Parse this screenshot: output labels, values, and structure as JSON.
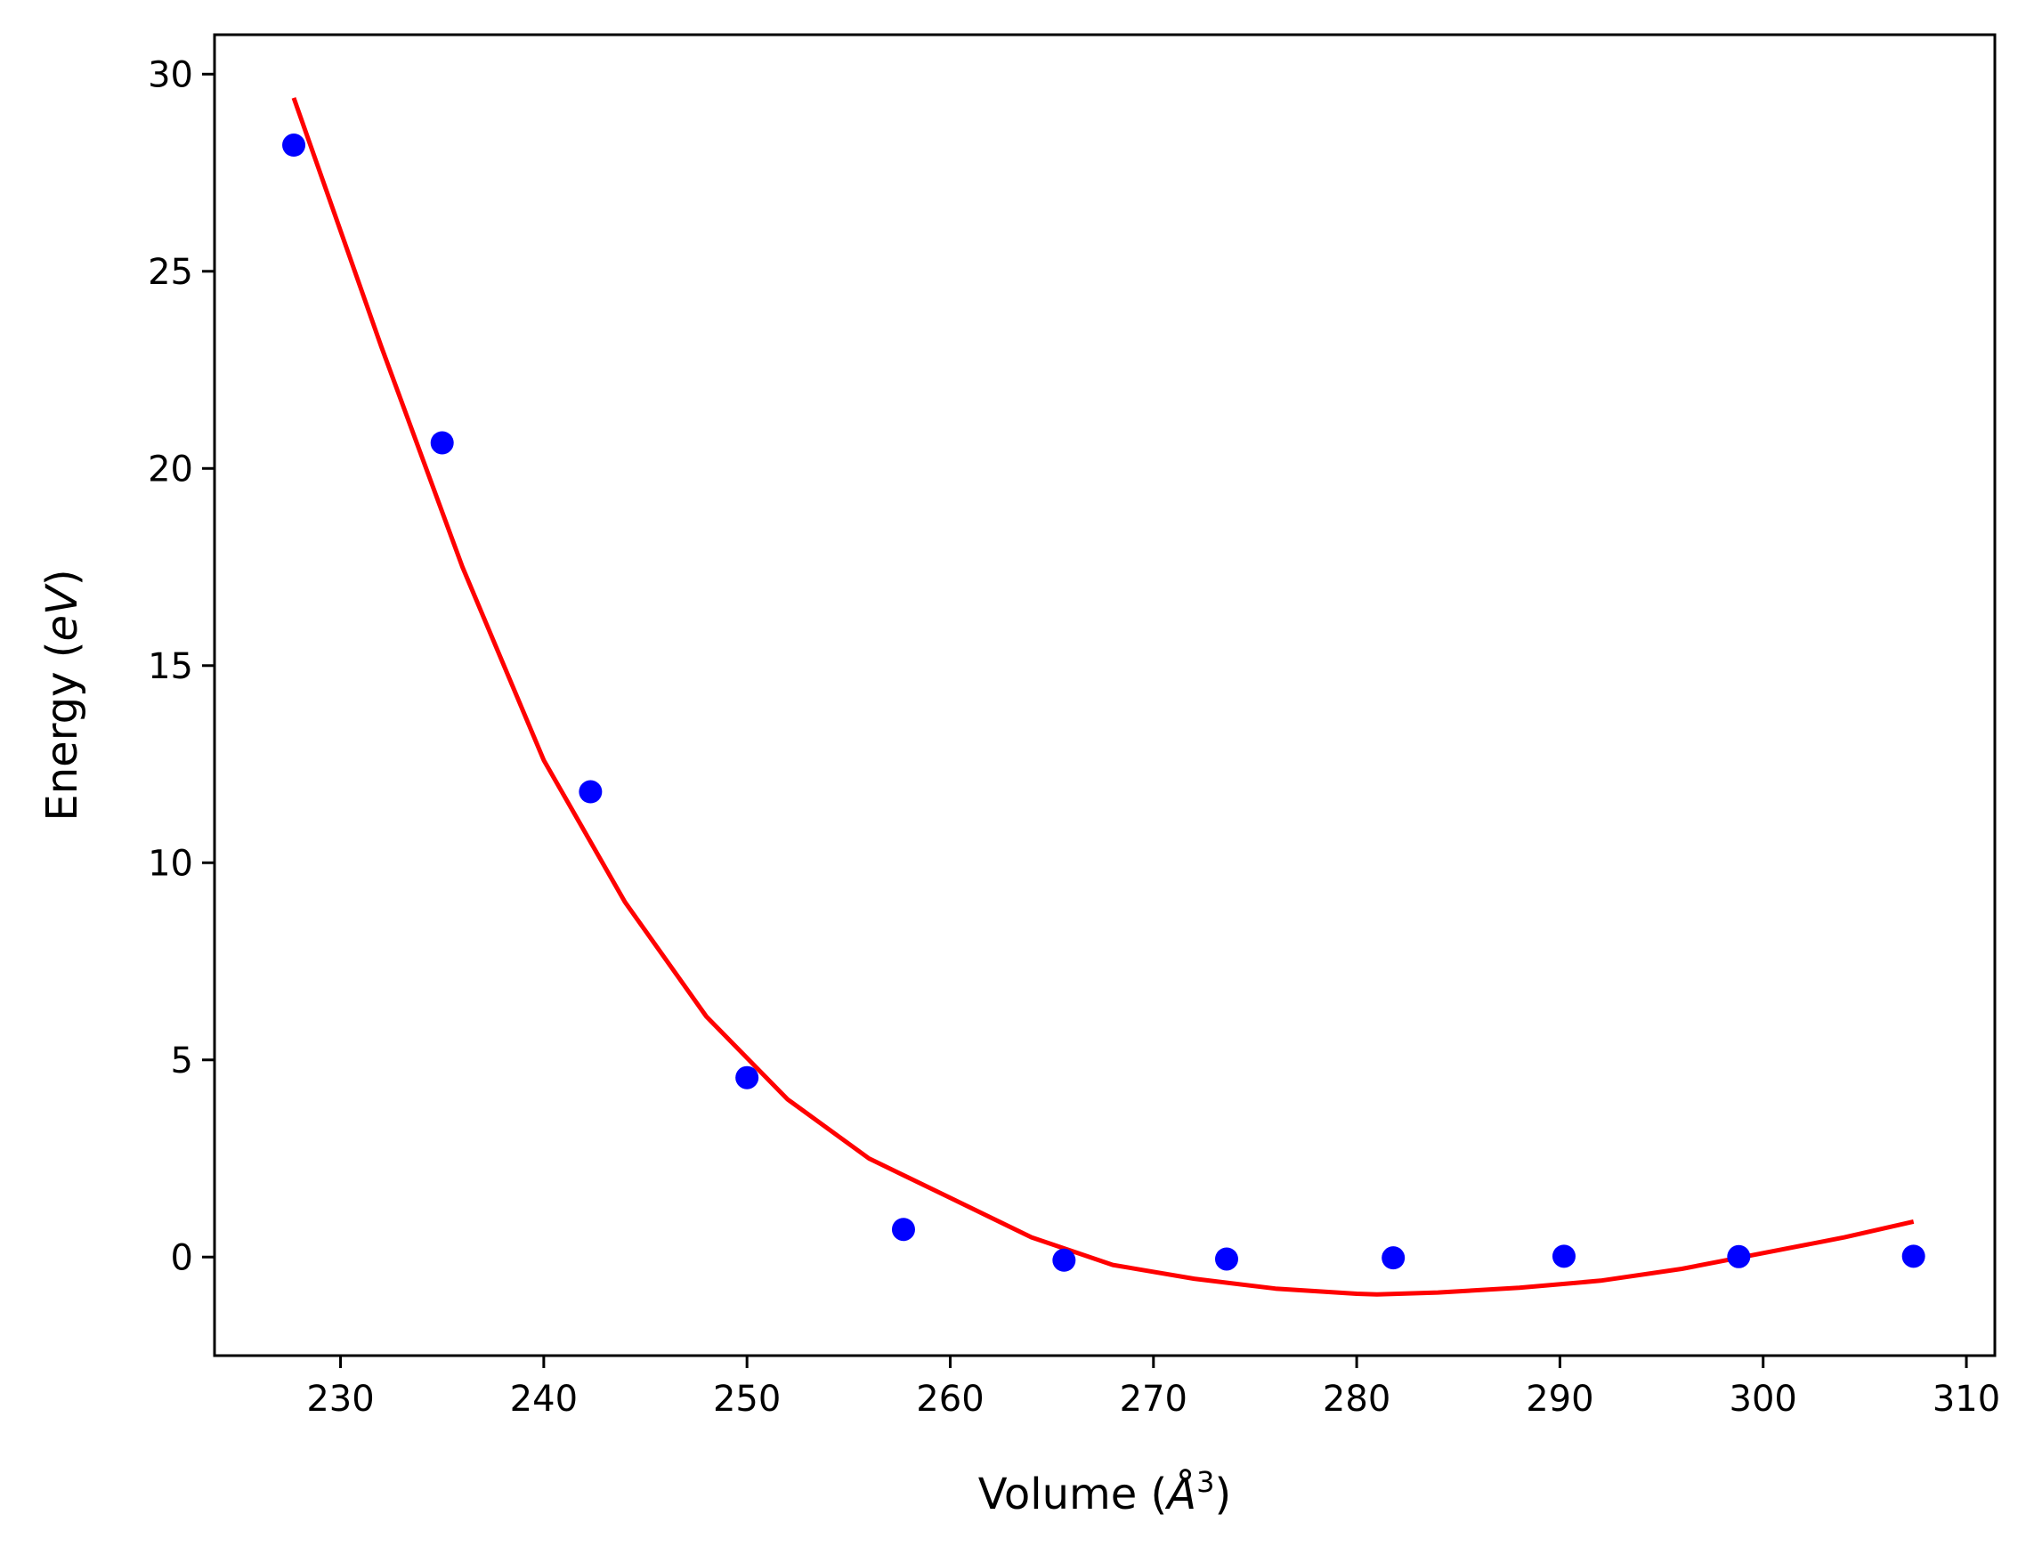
{
  "chart_data": {
    "type": "scatter",
    "title": "",
    "xlabel": "Volume (",
    "xlabel_sym": "Å",
    "xlabel_exp": "3",
    "xlabel_close": ")",
    "ylabel": "Energy (",
    "ylabel_unit": "eV",
    "ylabel_close": ")",
    "xlim": [
      223.8,
      311.4
    ],
    "ylim": [
      -2.5,
      31.0
    ],
    "xticks": [
      230,
      240,
      250,
      260,
      270,
      280,
      290,
      300,
      310
    ],
    "yticks": [
      0,
      5,
      10,
      15,
      20,
      25,
      30
    ],
    "grid": false,
    "series": [
      {
        "kind": "points",
        "color": "#0000ff",
        "x": [
          227.7,
          235.0,
          242.3,
          250.0,
          257.7,
          265.6,
          273.6,
          281.8,
          290.2,
          298.8,
          307.4
        ],
        "y": [
          28.2,
          20.65,
          11.8,
          4.55,
          0.7,
          -0.08,
          -0.05,
          -0.02,
          0.02,
          0.01,
          0.02
        ]
      },
      {
        "kind": "fit-line",
        "color": "#ff0000",
        "x": [
          227.7,
          232.0,
          236.0,
          240.0,
          244.0,
          248.0,
          252.0,
          256.0,
          260.0,
          264.0,
          268.0,
          272.0,
          276.0,
          280.0,
          281.0,
          284.0,
          288.0,
          292.0,
          296.0,
          300.0,
          304.0,
          307.4
        ],
        "y": [
          29.4,
          23.1,
          17.5,
          12.6,
          9.0,
          6.1,
          4.0,
          2.5,
          1.5,
          0.5,
          -0.2,
          -0.55,
          -0.8,
          -0.93,
          -0.95,
          -0.9,
          -0.78,
          -0.6,
          -0.3,
          0.1,
          0.5,
          0.9
        ]
      }
    ]
  }
}
